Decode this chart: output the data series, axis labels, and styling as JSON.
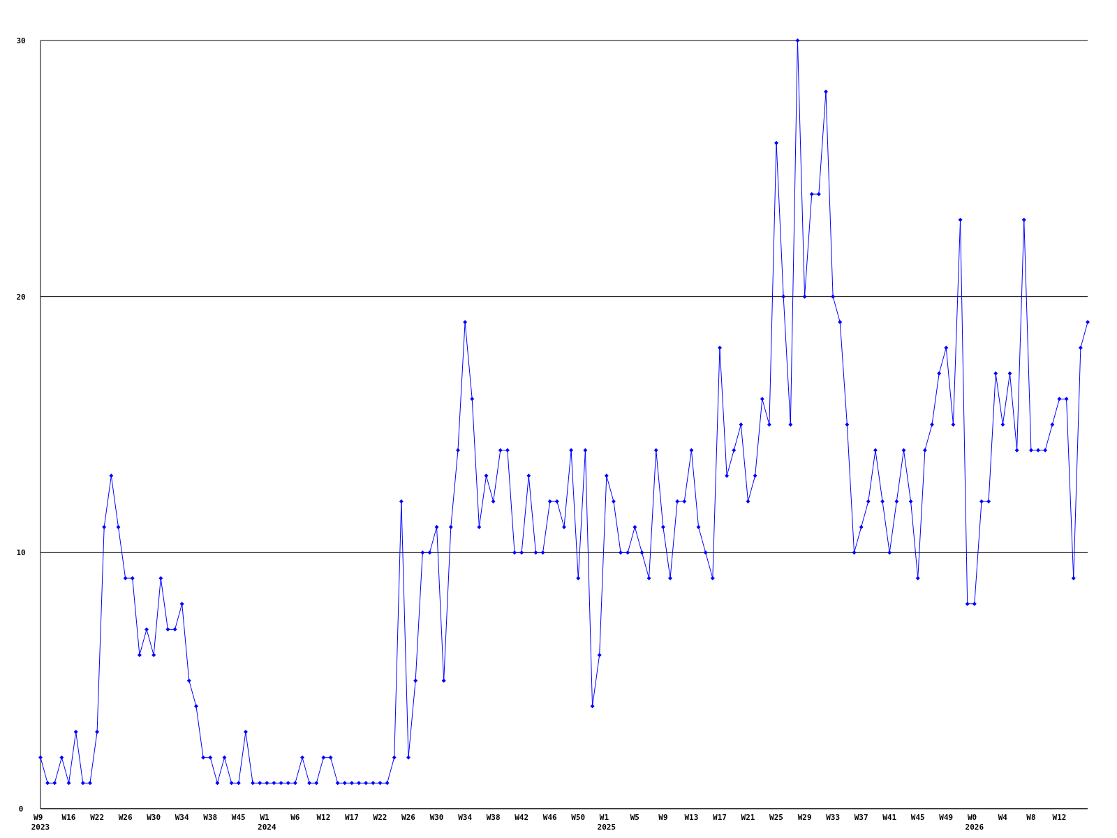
{
  "chart_data": {
    "type": "line",
    "categories": [
      "W9 2023",
      null,
      null,
      null,
      "W16",
      null,
      null,
      null,
      "W22",
      null,
      null,
      null,
      "W26",
      null,
      null,
      null,
      "W30",
      null,
      null,
      null,
      "W34",
      null,
      null,
      null,
      "W38",
      null,
      null,
      null,
      "W45",
      null,
      null,
      null,
      "W1 2024",
      null,
      null,
      null,
      "W6",
      null,
      null,
      null,
      "W12",
      null,
      null,
      null,
      "W17",
      null,
      null,
      null,
      "W22",
      null,
      null,
      null,
      "W26",
      null,
      null,
      null,
      "W30",
      null,
      null,
      null,
      "W34",
      null,
      null,
      null,
      "W38",
      null,
      null,
      null,
      "W42",
      null,
      null,
      null,
      "W46",
      null,
      null,
      null,
      "W50",
      null,
      null,
      null,
      "W1 2025",
      null,
      null,
      null,
      "W5",
      null,
      null,
      null,
      "W9",
      null,
      null,
      null,
      "W13",
      null,
      null,
      null,
      "W17",
      null,
      null,
      null,
      "W21",
      null,
      null,
      null,
      "W25",
      null,
      null,
      null,
      "W29",
      null,
      null,
      null,
      "W33",
      null,
      null,
      null,
      "W37",
      null,
      null,
      null,
      "W41",
      null,
      null,
      null,
      "W45",
      null,
      null,
      null,
      "W49",
      null,
      null,
      null,
      "W0 2026",
      null,
      null,
      null,
      "W4",
      null,
      null,
      null,
      "W8",
      null,
      null,
      null,
      "W12",
      null,
      null,
      null,
      null
    ],
    "series": [
      {
        "color": "#0000ff",
        "values": [
          2,
          1,
          1,
          2,
          1,
          3,
          1,
          1,
          3,
          11,
          13,
          11,
          9,
          9,
          6,
          7,
          6,
          9,
          7,
          7,
          8,
          5,
          4,
          2,
          2,
          1,
          2,
          1,
          1,
          3,
          1,
          1,
          1,
          1,
          1,
          1,
          1,
          2,
          1,
          1,
          2,
          2,
          1,
          1,
          1,
          1,
          1,
          1,
          1,
          1,
          2,
          12,
          2,
          5,
          10,
          10,
          11,
          5,
          11,
          14,
          19,
          16,
          11,
          13,
          12,
          14,
          14,
          10,
          10,
          13,
          10,
          10,
          12,
          12,
          11,
          14,
          9,
          14,
          4,
          6,
          13,
          12,
          10,
          10,
          11,
          10,
          9,
          14,
          11,
          9,
          12,
          12,
          14,
          11,
          10,
          9,
          18,
          13,
          14,
          15,
          12,
          13,
          16,
          15,
          26,
          20,
          15,
          30,
          20,
          24,
          24,
          28,
          20,
          19,
          15,
          10,
          11,
          12,
          14,
          12,
          10,
          12,
          14,
          12,
          9,
          14,
          15,
          17,
          18,
          15,
          23,
          8,
          8,
          12,
          12,
          17,
          15,
          17,
          14,
          23,
          14,
          14,
          14,
          15,
          16,
          16,
          9,
          18,
          19
        ]
      }
    ],
    "ylim": [
      0,
      30
    ],
    "yticks": [
      0,
      10,
      20,
      30
    ],
    "grid": "y",
    "marker": "diamond",
    "line_style": "solid"
  }
}
